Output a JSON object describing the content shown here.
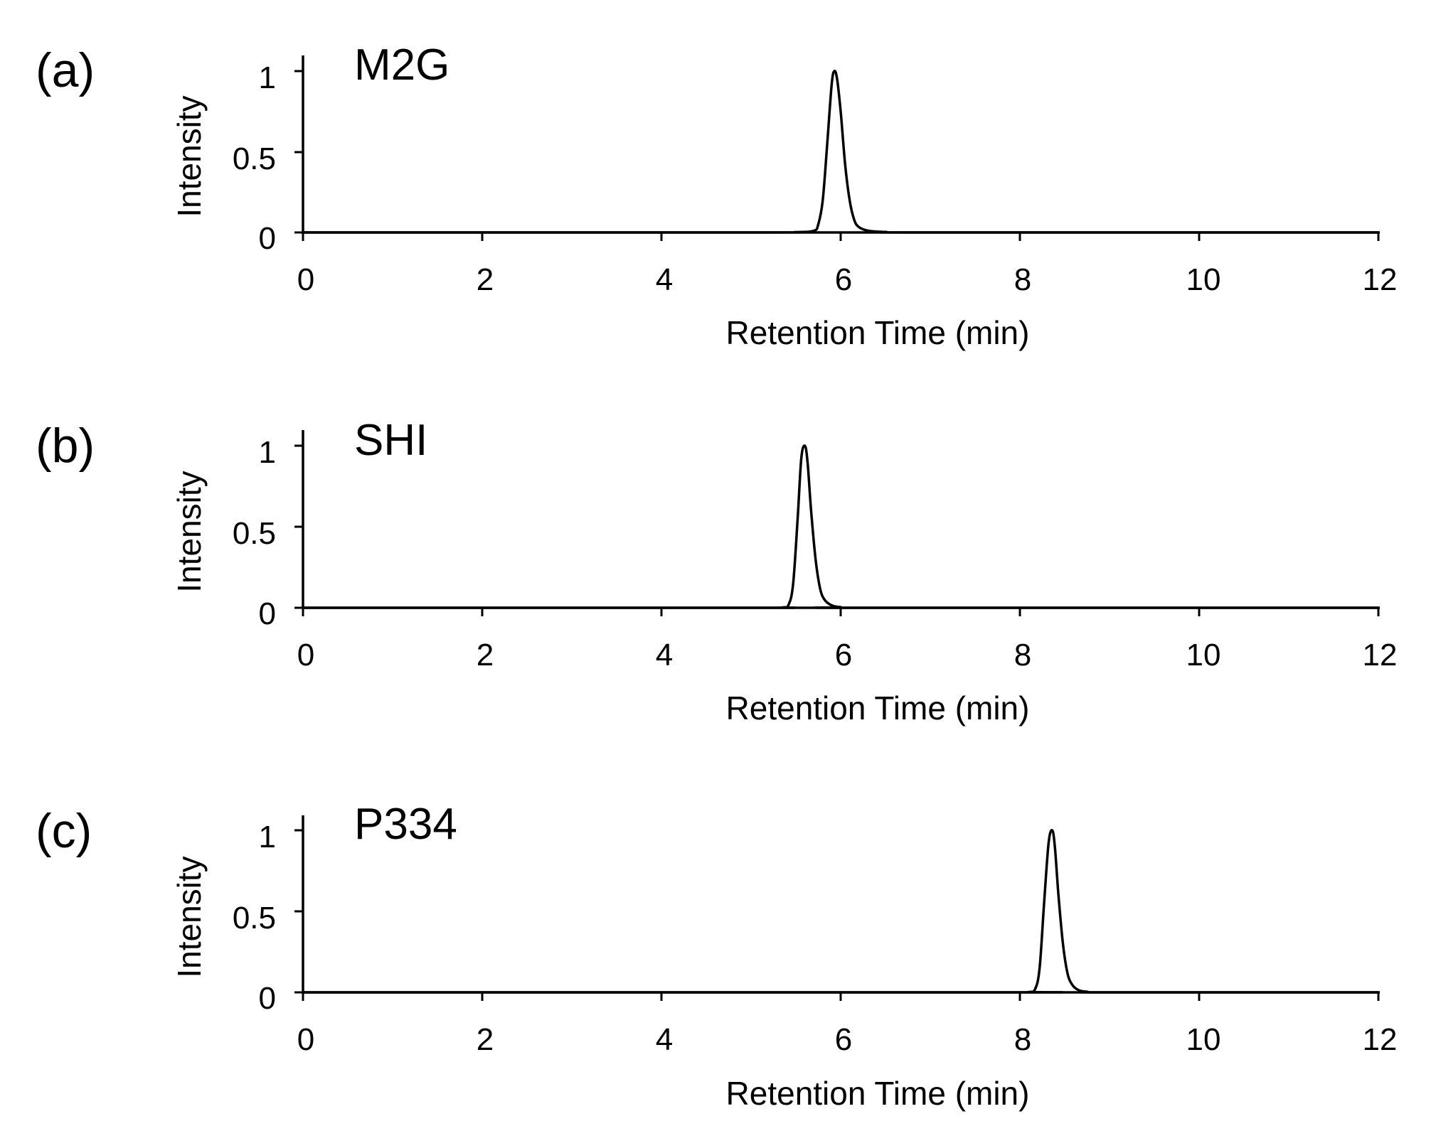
{
  "chart_data": [
    {
      "type": "line",
      "panel_label": "(a)",
      "title": "M2G",
      "xlabel": "Retention Time (min)",
      "ylabel": "Intensity",
      "xlim": [
        0,
        12
      ],
      "ylim": [
        0,
        1.1
      ],
      "xticks": [
        0,
        2,
        4,
        6,
        8,
        10,
        12
      ],
      "yticks": [
        0,
        0.5,
        1
      ],
      "xtick_labels": [
        "0",
        "2",
        "4",
        "6",
        "8",
        "10",
        "12"
      ],
      "ytick_labels": [
        "0",
        "0.5",
        "1"
      ],
      "grid": false,
      "series": [
        {
          "name": "M2G",
          "x": [
            0,
            5.0,
            5.5,
            5.7,
            5.75,
            5.8,
            5.85,
            5.9,
            5.93,
            5.96,
            6.0,
            6.05,
            6.1,
            6.15,
            6.2,
            6.3,
            6.5,
            7.0,
            12
          ],
          "y": [
            0,
            0,
            0.002,
            0.01,
            0.05,
            0.2,
            0.55,
            0.92,
            1.0,
            0.95,
            0.75,
            0.42,
            0.2,
            0.08,
            0.035,
            0.012,
            0.003,
            0,
            0
          ]
        }
      ]
    },
    {
      "type": "line",
      "panel_label": "(b)",
      "title": "SHI",
      "xlabel": "Retention Time (min)",
      "ylabel": "Intensity",
      "xlim": [
        0,
        12
      ],
      "ylim": [
        0,
        1.1
      ],
      "xticks": [
        0,
        2,
        4,
        6,
        8,
        10,
        12
      ],
      "yticks": [
        0,
        0.5,
        1
      ],
      "xtick_labels": [
        "0",
        "2",
        "4",
        "6",
        "8",
        "10",
        "12"
      ],
      "ytick_labels": [
        "0",
        "0.5",
        "1"
      ],
      "grid": false,
      "series": [
        {
          "name": "SHI",
          "x": [
            0,
            5.0,
            5.35,
            5.42,
            5.47,
            5.52,
            5.56,
            5.6,
            5.63,
            5.67,
            5.72,
            5.77,
            5.82,
            5.9,
            6.0,
            6.2,
            12
          ],
          "y": [
            0,
            0,
            0.002,
            0.02,
            0.15,
            0.55,
            0.92,
            1.0,
            0.9,
            0.6,
            0.3,
            0.12,
            0.05,
            0.015,
            0.004,
            0,
            0
          ]
        }
      ]
    },
    {
      "type": "line",
      "panel_label": "(c)",
      "title": "P334",
      "xlabel": "Retention Time (min)",
      "ylabel": "Intensity",
      "xlim": [
        0,
        12
      ],
      "ylim": [
        0,
        1.1
      ],
      "xticks": [
        0,
        2,
        4,
        6,
        8,
        10,
        12
      ],
      "yticks": [
        0,
        0.5,
        1
      ],
      "xtick_labels": [
        "0",
        "2",
        "4",
        "6",
        "8",
        "10",
        "12"
      ],
      "ytick_labels": [
        "0",
        "0.5",
        "1"
      ],
      "grid": false,
      "series": [
        {
          "name": "P334",
          "x": [
            0,
            7.8,
            8.1,
            8.17,
            8.22,
            8.27,
            8.32,
            8.36,
            8.39,
            8.43,
            8.48,
            8.53,
            8.58,
            8.65,
            8.75,
            9.0,
            12
          ],
          "y": [
            0,
            0,
            0.002,
            0.02,
            0.15,
            0.55,
            0.92,
            1.0,
            0.9,
            0.6,
            0.3,
            0.12,
            0.05,
            0.015,
            0.004,
            0,
            0
          ]
        }
      ]
    }
  ]
}
